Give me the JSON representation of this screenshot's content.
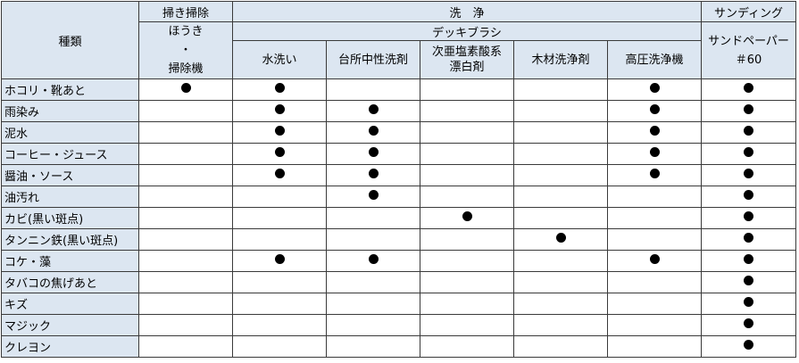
{
  "header": {
    "type_label": "種類",
    "sweep_group": "掃き掃除",
    "sweep_tool": [
      "ほうき",
      "・",
      "掃除機"
    ],
    "wash_group": "洗　浄",
    "deck_brush": "デッキブラシ",
    "sanding_group": "サンディング",
    "sandpaper": [
      "サンドペーパー",
      "＃60"
    ],
    "methods": [
      "水洗い",
      "台所中性洗剤",
      "次亜塩素酸系",
      "漂白剤",
      "木材洗浄剤",
      "高圧洗浄機"
    ]
  },
  "mark_symbol": "filled-circle",
  "columns": [
    "ほうき・掃除機",
    "水洗い",
    "台所中性洗剤",
    "次亜塩素酸系漂白剤",
    "木材洗浄剤",
    "高圧洗浄機",
    "サンドペーパー＃60"
  ],
  "rows": [
    {
      "label": "ホコリ・靴あと",
      "marks": [
        1,
        1,
        0,
        0,
        0,
        1,
        1
      ]
    },
    {
      "label": "雨染み",
      "marks": [
        0,
        1,
        1,
        0,
        0,
        1,
        1
      ]
    },
    {
      "label": "泥水",
      "marks": [
        0,
        1,
        1,
        0,
        0,
        1,
        1
      ]
    },
    {
      "label": "コーヒー・ジュース",
      "marks": [
        0,
        1,
        1,
        0,
        0,
        1,
        1
      ]
    },
    {
      "label": "醤油・ソース",
      "marks": [
        0,
        1,
        1,
        0,
        0,
        1,
        1
      ]
    },
    {
      "label": "油汚れ",
      "marks": [
        0,
        0,
        1,
        0,
        0,
        0,
        1
      ]
    },
    {
      "label": "カビ(黒い斑点)",
      "marks": [
        0,
        0,
        0,
        1,
        0,
        0,
        1
      ]
    },
    {
      "label": "タンニン鉄(黒い斑点)",
      "marks": [
        0,
        0,
        0,
        0,
        1,
        0,
        1
      ]
    },
    {
      "label": "コケ・藻",
      "marks": [
        0,
        1,
        1,
        0,
        0,
        1,
        1
      ]
    },
    {
      "label": "タバコの焦げあと",
      "marks": [
        0,
        0,
        0,
        0,
        0,
        0,
        1
      ]
    },
    {
      "label": "キズ",
      "marks": [
        0,
        0,
        0,
        0,
        0,
        0,
        1
      ]
    },
    {
      "label": "マジック",
      "marks": [
        0,
        0,
        0,
        0,
        0,
        0,
        1
      ]
    },
    {
      "label": "クレヨン",
      "marks": [
        0,
        0,
        0,
        0,
        0,
        0,
        1
      ]
    }
  ]
}
